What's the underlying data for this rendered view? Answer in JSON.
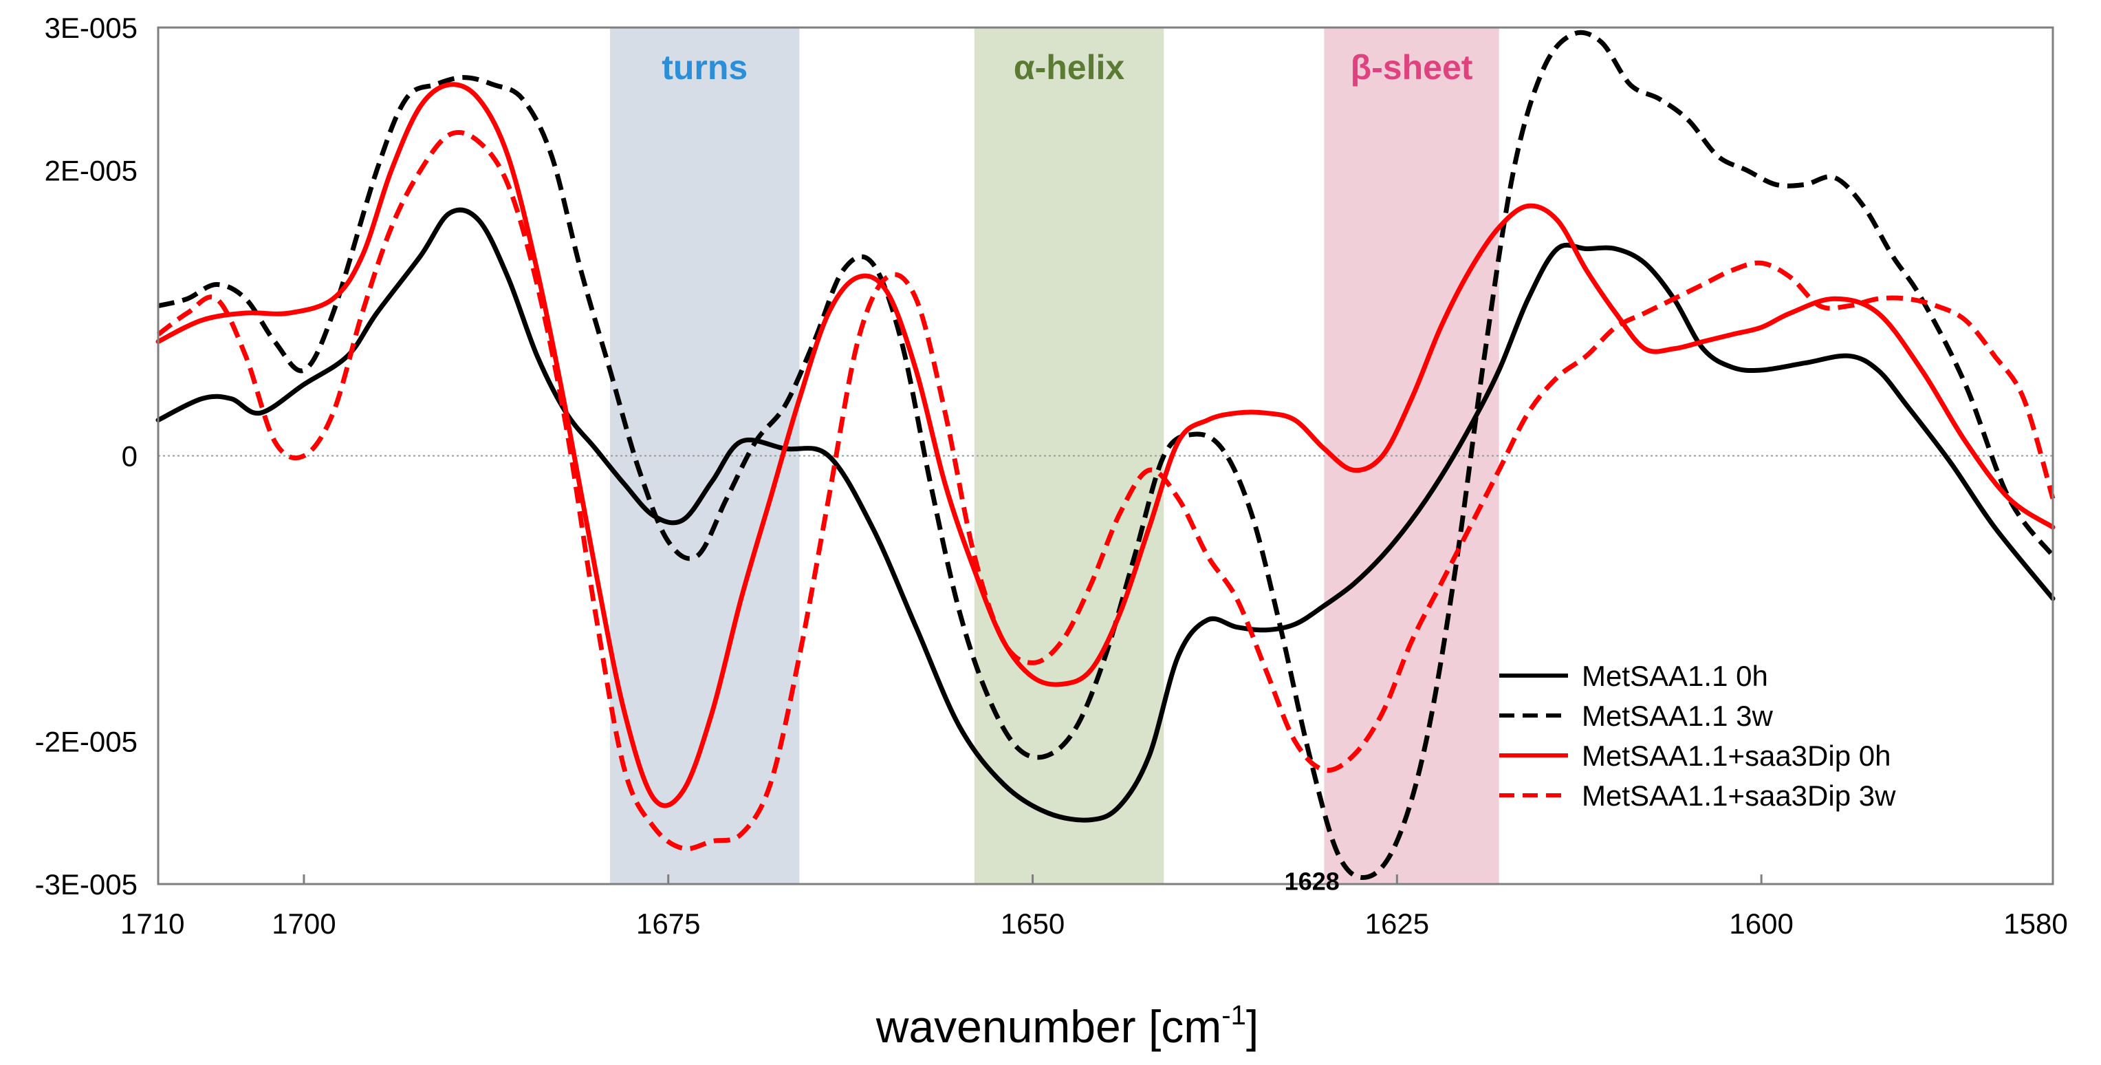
{
  "chart_data": {
    "type": "line",
    "xlabel": "wavenumber [cm",
    "xlabel_sup": "-1",
    "xlabel_close": "]",
    "ylabel": "",
    "xlim": [
      1710,
      1580
    ],
    "ylim": [
      -3e-05,
      3e-05
    ],
    "x_ticks": [
      1710,
      1700,
      1675,
      1650,
      1625,
      1600,
      1580
    ],
    "y_ticks": [
      {
        "value": 3e-05,
        "label": "3E-005"
      },
      {
        "value": 2e-05,
        "label": "2E-005"
      },
      {
        "value": 0,
        "label": "0"
      },
      {
        "value": -2e-05,
        "label": "-2E-005"
      },
      {
        "value": -3e-05,
        "label": "-3E-005"
      }
    ],
    "bands": [
      {
        "label": "turns",
        "from": 1679,
        "to": 1666,
        "fill": "#d6dde6",
        "text_color": "#2a8fd8"
      },
      {
        "label": "α-helix",
        "from": 1654,
        "to": 1641,
        "fill": "#d9e3cc",
        "text_color": "#5b7a33"
      },
      {
        "label": "β-sheet",
        "from": 1630,
        "to": 1618,
        "fill": "#f0cfd9",
        "text_color": "#e0427f"
      }
    ],
    "annotations": [
      {
        "text": "1628",
        "x": 1628,
        "y": -2.8e-05
      }
    ],
    "series": [
      {
        "name": "MetSAA1.1 0h",
        "color": "#000000",
        "dash": "solid",
        "x": [
          1710,
          1707,
          1705,
          1703,
          1700,
          1697,
          1695,
          1692,
          1690,
          1688,
          1686,
          1684,
          1682,
          1680,
          1678,
          1676,
          1674,
          1672,
          1670,
          1667,
          1664,
          1661,
          1658,
          1655,
          1652,
          1649,
          1646,
          1644,
          1642,
          1640,
          1638,
          1636,
          1634,
          1632,
          1630,
          1628,
          1626,
          1624,
          1622,
          1620,
          1618,
          1616,
          1614,
          1612,
          1610,
          1608,
          1606,
          1604,
          1602,
          1600,
          1597,
          1594,
          1592,
          1590,
          1587,
          1584,
          1580
        ],
        "y": [
          2.5e-06,
          4e-06,
          4e-06,
          3e-06,
          5e-06,
          7e-06,
          1e-05,
          1.4e-05,
          1.7e-05,
          1.65e-05,
          1.25e-05,
          7e-06,
          3e-06,
          5e-07,
          -2e-06,
          -4.2e-06,
          -4.5e-06,
          -1.8e-06,
          1e-06,
          5e-07,
          0.0,
          -5e-06,
          -1.2e-05,
          -1.9e-05,
          -2.3e-05,
          -2.5e-05,
          -2.55e-05,
          -2.45e-05,
          -2.1e-05,
          -1.4e-05,
          -1.15e-05,
          -1.2e-05,
          -1.22e-05,
          -1.18e-05,
          -1.05e-05,
          -9e-06,
          -7e-06,
          -4.5e-06,
          -1.5e-06,
          2e-06,
          6e-06,
          1.1e-05,
          1.45e-05,
          1.45e-05,
          1.45e-05,
          1.35e-05,
          1.1e-05,
          7.5e-06,
          6.2e-06,
          6e-06,
          6.5e-06,
          7e-06,
          6e-06,
          3.5e-06,
          -5e-07,
          -5e-06,
          -1e-05
        ]
      },
      {
        "name": "MetSAA1.1 3w",
        "color": "#000000",
        "dash": "dashed",
        "x": [
          1710,
          1708,
          1706,
          1704,
          1702,
          1700,
          1698,
          1695,
          1693,
          1691,
          1689,
          1687,
          1685,
          1683,
          1681,
          1679,
          1677,
          1675,
          1673,
          1671,
          1669,
          1667,
          1665,
          1663,
          1661,
          1659,
          1657,
          1655,
          1653,
          1651,
          1649,
          1647,
          1645,
          1643,
          1641,
          1639,
          1637,
          1635,
          1633,
          1631,
          1629,
          1627,
          1625,
          1623,
          1621,
          1619,
          1617,
          1615,
          1613,
          1611,
          1609,
          1607,
          1605,
          1603,
          1601,
          1599,
          1597,
          1595,
          1593,
          1591,
          1589,
          1586,
          1583,
          1580
        ],
        "y": [
          1.05e-05,
          1.1e-05,
          1.2e-05,
          1.1e-05,
          8e-06,
          6e-06,
          1e-05,
          2e-05,
          2.5e-05,
          2.6e-05,
          2.65e-05,
          2.6e-05,
          2.5e-05,
          2.1e-05,
          1.3e-05,
          6e-06,
          -1e-06,
          -6e-06,
          -7e-06,
          -3e-06,
          1e-06,
          3.5e-06,
          8e-06,
          1.3e-05,
          1.35e-05,
          8e-06,
          -2e-06,
          -1.1e-05,
          -1.7e-05,
          -2.05e-05,
          -2.1e-05,
          -1.9e-05,
          -1.4e-05,
          -7e-06,
          0.0,
          1.5e-06,
          5e-07,
          -4e-06,
          -1.2e-05,
          -2.1e-05,
          -2.8e-05,
          -2.95e-05,
          -2.7e-05,
          -2e-05,
          -8e-06,
          7e-06,
          2e-05,
          2.7e-05,
          2.95e-05,
          2.9e-05,
          2.6e-05,
          2.5e-05,
          2.35e-05,
          2.1e-05,
          2e-05,
          1.9e-05,
          1.9e-05,
          1.95e-05,
          1.75e-05,
          1.4e-05,
          1.1e-05,
          5e-06,
          -3e-06,
          -7e-06
        ]
      },
      {
        "name": "MetSAA1.1+saa3Dip 0h",
        "color": "#ff0000",
        "dash": "solid",
        "x": [
          1710,
          1707,
          1704,
          1701,
          1698,
          1696,
          1694,
          1692,
          1690,
          1688,
          1686,
          1684,
          1682,
          1680,
          1678,
          1676,
          1674,
          1672,
          1670,
          1668,
          1666,
          1664,
          1662,
          1660,
          1658,
          1656,
          1654,
          1652,
          1650,
          1648,
          1646,
          1644,
          1642,
          1640,
          1638,
          1636,
          1634,
          1632,
          1630,
          1628,
          1626,
          1624,
          1622,
          1620,
          1618,
          1616,
          1614,
          1612,
          1610,
          1608,
          1606,
          1604,
          1602,
          1600,
          1598,
          1595,
          1592,
          1589,
          1586,
          1583,
          1580
        ],
        "y": [
          8e-06,
          9.5e-06,
          1e-05,
          1e-05,
          1.1e-05,
          1.4e-05,
          2e-05,
          2.45e-05,
          2.6e-05,
          2.5e-05,
          2.1e-05,
          1.3e-05,
          3e-06,
          -8e-06,
          -1.8e-05,
          -2.4e-05,
          -2.35e-05,
          -1.8e-05,
          -1e-05,
          -3e-06,
          4e-06,
          1e-05,
          1.25e-05,
          1.15e-05,
          6e-06,
          -2e-06,
          -8e-06,
          -1.3e-05,
          -1.55e-05,
          -1.6e-05,
          -1.5e-05,
          -1.1e-05,
          -5e-06,
          1e-06,
          2.5e-06,
          3e-06,
          3e-06,
          2.5e-06,
          5e-07,
          -1e-06,
          0.0,
          4e-06,
          9e-06,
          1.3e-05,
          1.6e-05,
          1.75e-05,
          1.65e-05,
          1.3e-05,
          1e-05,
          7.5e-06,
          7.5e-06,
          8e-06,
          8.5e-06,
          9e-06,
          1e-05,
          1.1e-05,
          1e-05,
          6e-06,
          1e-06,
          -3e-06,
          -5e-06
        ]
      },
      {
        "name": "MetSAA1.1+saa3Dip 3w",
        "color": "#ff0000",
        "dash": "dashed",
        "x": [
          1710,
          1708,
          1706,
          1704,
          1702,
          1700,
          1698,
          1696,
          1694,
          1692,
          1690,
          1688,
          1686,
          1684,
          1682,
          1680,
          1678,
          1676,
          1674,
          1672,
          1670,
          1668,
          1666,
          1664,
          1662,
          1660,
          1658,
          1656,
          1654,
          1652,
          1650,
          1648,
          1646,
          1644,
          1642,
          1640,
          1638,
          1636,
          1634,
          1632,
          1630,
          1628,
          1626,
          1624,
          1622,
          1620,
          1618,
          1616,
          1614,
          1612,
          1610,
          1608,
          1606,
          1604,
          1602,
          1600,
          1598,
          1596,
          1594,
          1592,
          1590,
          1588,
          1586,
          1584,
          1582,
          1580
        ],
        "y": [
          8.5e-06,
          1e-05,
          1.1e-05,
          7e-06,
          1e-06,
          0.0,
          3e-06,
          1e-05,
          1.6e-05,
          2e-05,
          2.25e-05,
          2.2e-05,
          1.9e-05,
          1.2e-05,
          2e-06,
          -1.1e-05,
          -2.2e-05,
          -2.6e-05,
          -2.75e-05,
          -2.7e-05,
          -2.65e-05,
          -2.3e-05,
          -1.4e-05,
          -3e-06,
          8e-06,
          1.25e-05,
          1.1e-05,
          3e-06,
          -7e-06,
          -1.3e-05,
          -1.45e-05,
          -1.3e-05,
          -9e-06,
          -4e-06,
          -1e-06,
          -3e-06,
          -7e-06,
          -1e-05,
          -1.5e-05,
          -2e-05,
          -2.2e-05,
          -2.1e-05,
          -1.8e-05,
          -1.3e-05,
          -9e-06,
          -5e-06,
          -1e-06,
          3e-06,
          5.5e-06,
          7e-06,
          9e-06,
          1e-05,
          1.1e-05,
          1.2e-05,
          1.3e-05,
          1.35e-05,
          1.25e-05,
          1.05e-05,
          1.05e-05,
          1.1e-05,
          1.1e-05,
          1.05e-05,
          9.5e-06,
          7e-06,
          4e-06,
          -3e-06
        ]
      }
    ]
  }
}
